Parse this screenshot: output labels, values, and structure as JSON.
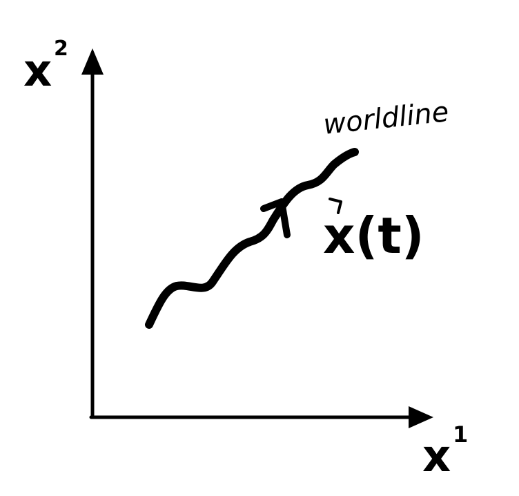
{
  "diagram": {
    "vertical_axis_label": "x",
    "vertical_axis_superscript": "2",
    "horizontal_axis_label": "x",
    "horizontal_axis_superscript": "1",
    "curve_label": "worldline",
    "position_label": "x(t)",
    "ink_color": "#000000",
    "background_color": "#ffffff"
  }
}
